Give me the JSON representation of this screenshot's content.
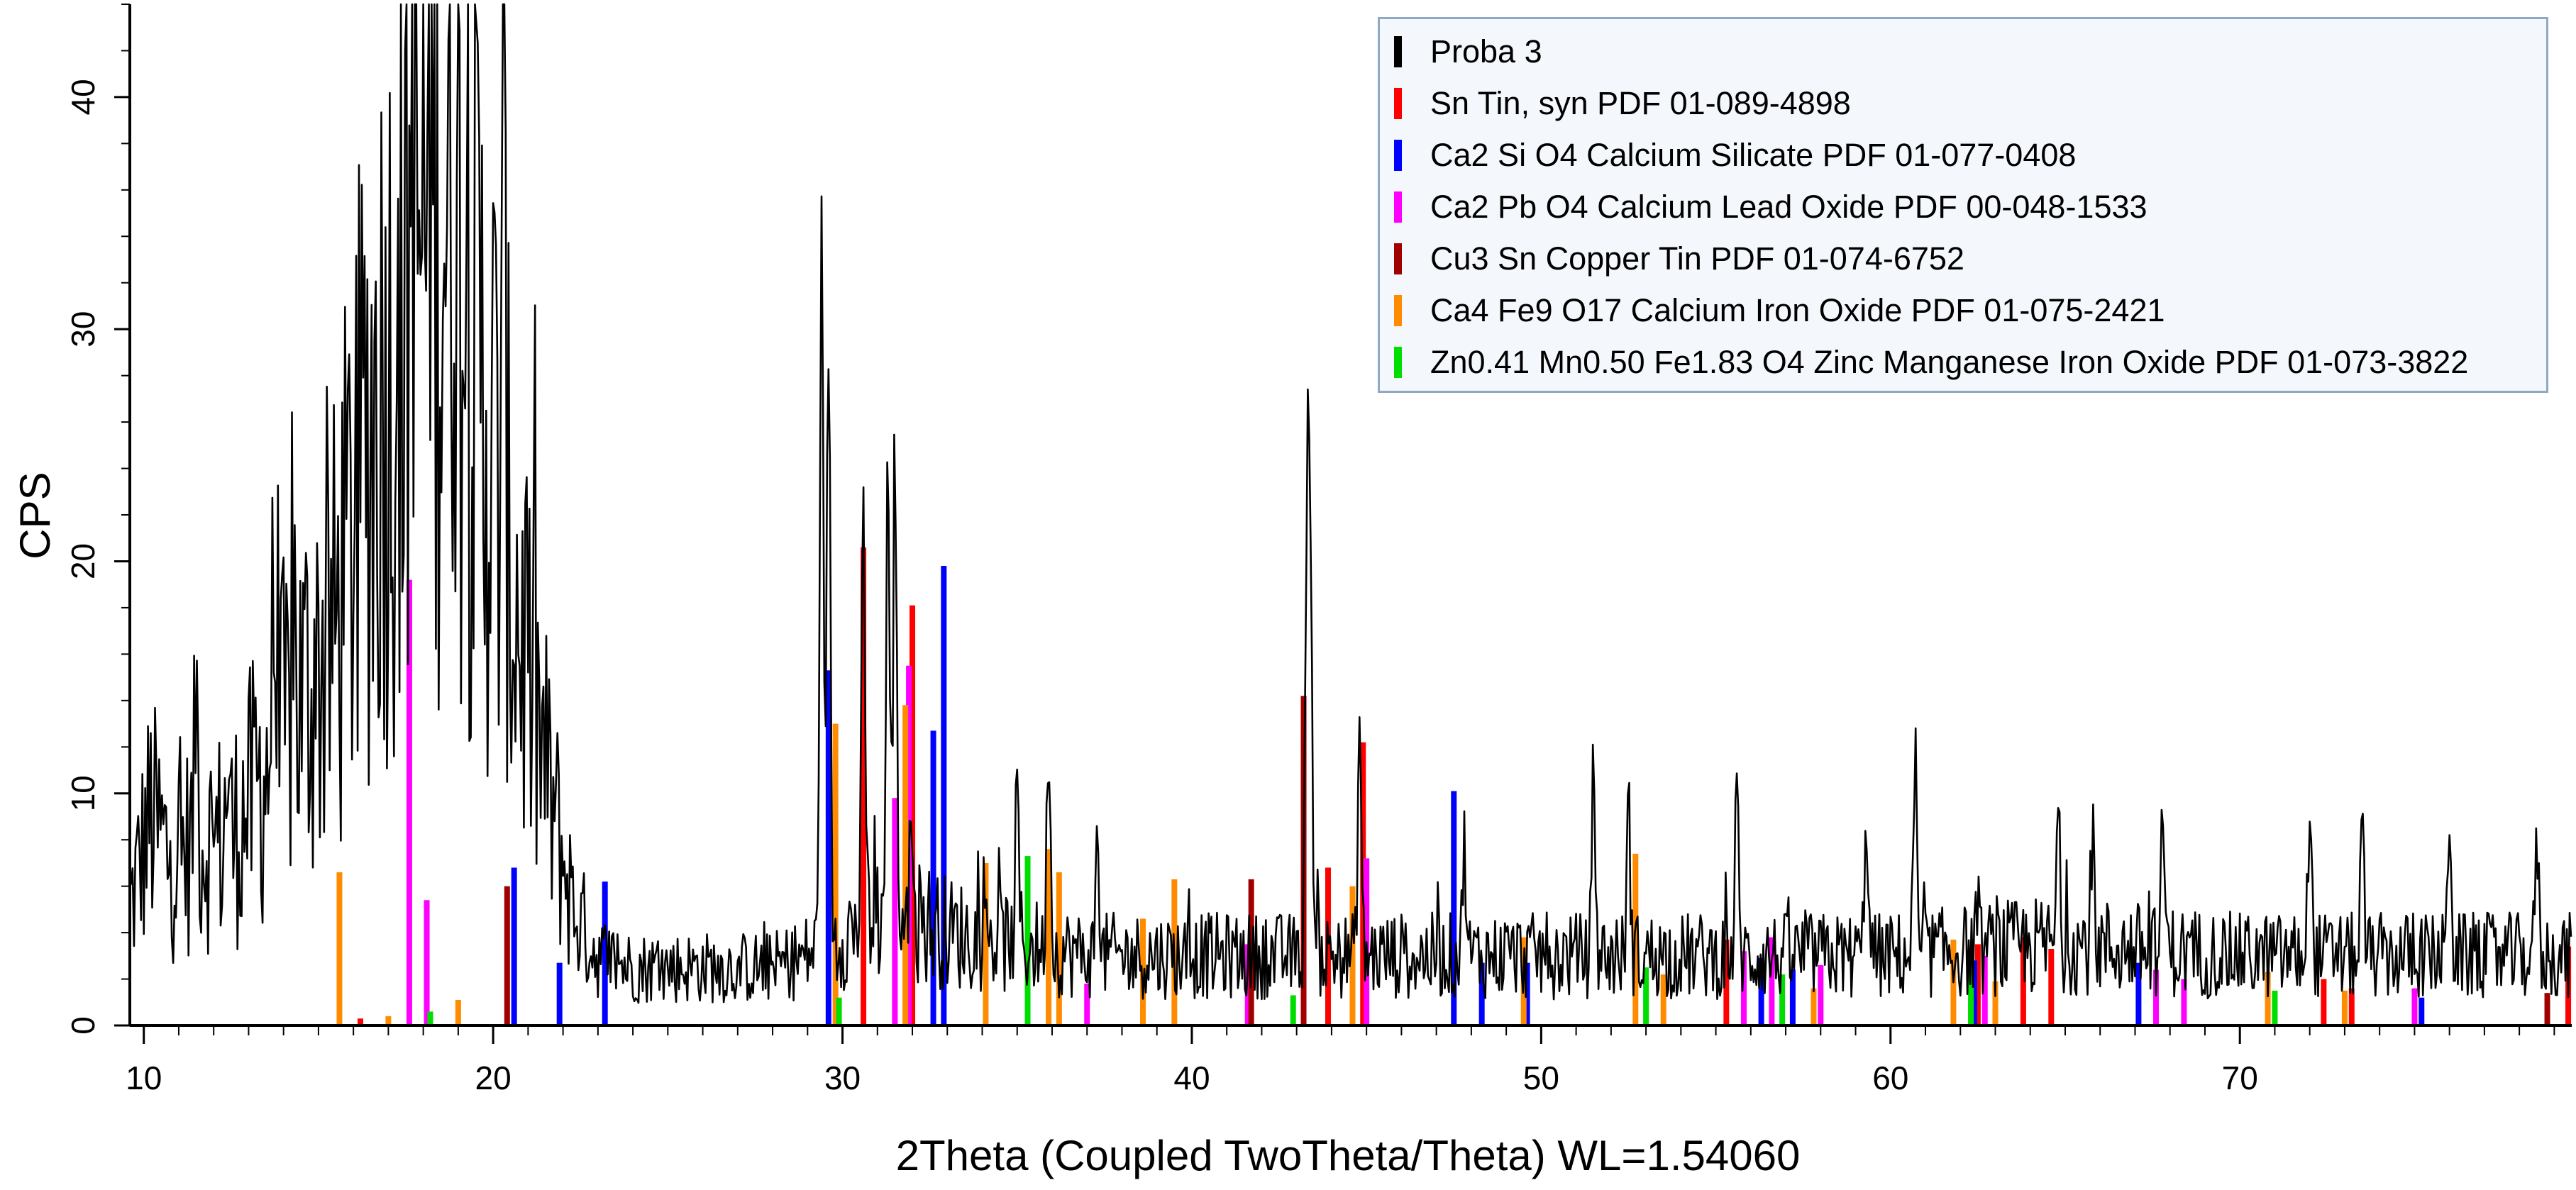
{
  "chart_data": {
    "type": "line",
    "xlabel": "2Theta (Coupled TwoTheta/Theta) WL=1.54060",
    "ylabel": "CPS",
    "xlim": [
      9.6,
      79.5
    ],
    "ylim": [
      0,
      44
    ],
    "x_ticks": [
      10,
      20,
      30,
      40,
      50,
      60,
      70
    ],
    "y_ticks": [
      0,
      10,
      20,
      30,
      40
    ],
    "grid": false,
    "legend_position": "top-right",
    "series": [
      {
        "name": "Proba 3",
        "color": "#000000",
        "kind": "pattern",
        "profile": [
          [
            9.6,
            5
          ],
          [
            10.2,
            9
          ],
          [
            10.8,
            7
          ],
          [
            11.5,
            8
          ],
          [
            12.5,
            8
          ],
          [
            13.5,
            11
          ],
          [
            14.5,
            14
          ],
          [
            15.5,
            17
          ],
          [
            16.5,
            26
          ],
          [
            17.3,
            30
          ],
          [
            18.0,
            34
          ],
          [
            18.6,
            36
          ],
          [
            19.3,
            31
          ],
          [
            20.0,
            25
          ],
          [
            20.8,
            17
          ],
          [
            21.6,
            10
          ],
          [
            22.3,
            5
          ],
          [
            23.0,
            3
          ],
          [
            24.0,
            2.5
          ],
          [
            26.0,
            2.5
          ],
          [
            28.0,
            2.5
          ],
          [
            29.0,
            3
          ],
          [
            30.0,
            4
          ],
          [
            31.5,
            5
          ],
          [
            33.0,
            4
          ],
          [
            35.0,
            3.5
          ],
          [
            37.0,
            3
          ],
          [
            40.0,
            3
          ],
          [
            45.0,
            3
          ],
          [
            50.0,
            3
          ],
          [
            55.0,
            3
          ],
          [
            60.0,
            3
          ],
          [
            65.0,
            3.5
          ],
          [
            70.0,
            3
          ],
          [
            75.0,
            3
          ],
          [
            79.5,
            3
          ]
        ],
        "peaks": [
          [
            11.5,
            14.5
          ],
          [
            12.4,
            11
          ],
          [
            13.7,
            17
          ],
          [
            14.3,
            18
          ],
          [
            17.7,
            41.5
          ],
          [
            18.2,
            41.5
          ],
          [
            18.9,
            39
          ],
          [
            20.3,
            38
          ],
          [
            29.4,
            34
          ],
          [
            29.6,
            30
          ],
          [
            30.6,
            21
          ],
          [
            31.3,
            24
          ],
          [
            31.5,
            24.5
          ],
          [
            32.0,
            10
          ],
          [
            35.0,
            10
          ],
          [
            35.9,
            13
          ],
          [
            37.3,
            8
          ],
          [
            43.3,
            22.7
          ],
          [
            43.4,
            20
          ],
          [
            44.8,
            13
          ],
          [
            47.8,
            8
          ],
          [
            51.5,
            11
          ],
          [
            52.5,
            9.5
          ],
          [
            55.6,
            10
          ],
          [
            59.3,
            9.5
          ],
          [
            60.7,
            10.5
          ],
          [
            64.8,
            8.5
          ],
          [
            65.8,
            7.5
          ],
          [
            67.8,
            9
          ],
          [
            72.0,
            10
          ],
          [
            73.5,
            8.5
          ],
          [
            76.0,
            9.5
          ],
          [
            78.5,
            8
          ]
        ]
      },
      {
        "name": "Sn Tin, syn PDF 01-089-4898",
        "color": "#ff0000",
        "sticks": [
          [
            16.2,
            0.3
          ],
          [
            30.6,
            20.6
          ],
          [
            32.0,
            18.1
          ],
          [
            43.9,
            6.8
          ],
          [
            44.9,
            12.2
          ],
          [
            55.3,
            3.7
          ],
          [
            62.5,
            3.5
          ],
          [
            63.8,
            3.8
          ],
          [
            64.6,
            3.3
          ],
          [
            72.4,
            2.0
          ],
          [
            73.2,
            1.6
          ],
          [
            79.4,
            3.4
          ]
        ]
      },
      {
        "name": "Ca2 Si O4 Calcium Silicate PDF 01-077-0408",
        "color": "#0000ff",
        "sticks": [
          [
            20.6,
            6.8
          ],
          [
            21.9,
            2.7
          ],
          [
            23.2,
            6.2
          ],
          [
            29.6,
            15.3
          ],
          [
            32.6,
            12.7
          ],
          [
            32.9,
            19.8
          ],
          [
            47.5,
            10.1
          ],
          [
            48.3,
            2.7
          ],
          [
            49.6,
            2.7
          ],
          [
            56.3,
            2.9
          ],
          [
            57.2,
            2.4
          ],
          [
            62.4,
            2.8
          ],
          [
            67.1,
            2.7
          ],
          [
            75.2,
            1.2
          ]
        ]
      },
      {
        "name": "Ca2 Pb O4 Calcium Lead Oxide PDF 00-048-1533",
        "color": "#ff00ff",
        "sticks": [
          [
            17.6,
            19.2
          ],
          [
            18.1,
            5.4
          ],
          [
            31.5,
            9.8
          ],
          [
            31.9,
            15.5
          ],
          [
            37.0,
            1.8
          ],
          [
            41.6,
            3.5
          ],
          [
            45.0,
            7.2
          ],
          [
            55.8,
            3.2
          ],
          [
            56.6,
            3.8
          ],
          [
            58.0,
            2.6
          ],
          [
            62.7,
            3.0
          ],
          [
            67.6,
            2.4
          ],
          [
            68.4,
            2.0
          ],
          [
            75.0,
            1.6
          ]
        ]
      },
      {
        "name": "Cu3 Sn Copper Tin PDF 01-074-6752",
        "color": "#a00000",
        "sticks": [
          [
            20.4,
            6.0
          ],
          [
            41.7,
            6.3
          ],
          [
            43.2,
            14.2
          ],
          [
            78.8,
            1.4
          ]
        ]
      },
      {
        "name": "Ca4 Fe9 O17 Calcium Iron Oxide PDF 01-075-2421",
        "color": "#ff8c00",
        "sticks": [
          [
            15.6,
            6.6
          ],
          [
            17.0,
            0.4
          ],
          [
            19.0,
            1.1
          ],
          [
            29.8,
            13.0
          ],
          [
            31.8,
            13.8
          ],
          [
            34.1,
            7.0
          ],
          [
            35.9,
            7.6
          ],
          [
            36.2,
            6.6
          ],
          [
            38.6,
            4.6
          ],
          [
            39.5,
            6.3
          ],
          [
            44.6,
            6.0
          ],
          [
            49.5,
            3.8
          ],
          [
            52.7,
            7.4
          ],
          [
            53.5,
            2.2
          ],
          [
            57.8,
            1.6
          ],
          [
            61.8,
            3.7
          ],
          [
            63.0,
            1.9
          ],
          [
            70.8,
            2.3
          ],
          [
            73.0,
            1.5
          ]
        ]
      },
      {
        "name": "Zn0.41 Mn0.50 Fe1.83 O4 Zinc Manganese Iron Oxide PDF 01-073-3822",
        "color": "#00dd00",
        "sticks": [
          [
            18.2,
            0.6
          ],
          [
            29.9,
            1.2
          ],
          [
            35.3,
            7.3
          ],
          [
            42.9,
            1.3
          ],
          [
            53.0,
            2.5
          ],
          [
            56.9,
            2.2
          ],
          [
            62.3,
            2.4
          ],
          [
            71.0,
            1.5
          ]
        ]
      }
    ]
  }
}
